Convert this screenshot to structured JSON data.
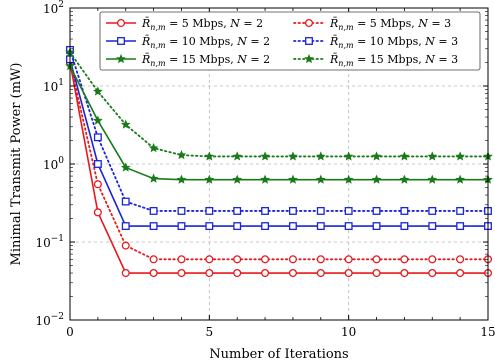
{
  "chart_data": {
    "type": "line",
    "title": "",
    "xlabel": "Number of Iterations",
    "ylabel": "Minimal Transmit Power (mW)",
    "xlim": [
      0,
      15
    ],
    "ylim": [
      0.01,
      100
    ],
    "yscale": "log",
    "grid": true,
    "legend_position": "top",
    "xticks": [
      0,
      5,
      10,
      15
    ],
    "xtick_labels": [
      "0",
      "5",
      "10",
      "15"
    ],
    "yticks": [
      0.01,
      0.1,
      1,
      10,
      100
    ],
    "ytick_labels": [
      {
        "base": "10",
        "exp": "−2"
      },
      {
        "base": "10",
        "exp": "−1"
      },
      {
        "base": "10",
        "exp": "0"
      },
      {
        "base": "10",
        "exp": "1"
      },
      {
        "base": "10",
        "exp": "2"
      }
    ],
    "x": [
      0,
      1,
      2,
      3,
      4,
      5,
      6,
      7,
      8,
      9,
      10,
      11,
      12,
      13,
      14,
      15
    ],
    "series": [
      {
        "name": "R̄n,m = 5 Mbps,  N = 2",
        "rate": "5",
        "n": "2",
        "color": "#e8191e",
        "dash": "solid",
        "marker": "circle",
        "values": [
          20,
          0.24,
          0.04,
          0.04,
          0.04,
          0.04,
          0.04,
          0.04,
          0.04,
          0.04,
          0.04,
          0.04,
          0.04,
          0.04,
          0.04,
          0.04
        ]
      },
      {
        "name": "R̄n,m = 5 Mbps,  N = 3",
        "rate": "5",
        "n": "3",
        "color": "#e8191e",
        "dash": "dotted",
        "marker": "circle",
        "values": [
          20,
          0.55,
          0.09,
          0.06,
          0.06,
          0.06,
          0.06,
          0.06,
          0.06,
          0.06,
          0.06,
          0.06,
          0.06,
          0.06,
          0.06,
          0.06
        ]
      },
      {
        "name": "R̄n,m = 10 Mbps,  N = 2",
        "rate": "10",
        "n": "2",
        "color": "#1a25d6",
        "dash": "solid",
        "marker": "square",
        "values": [
          22,
          1.0,
          0.16,
          0.16,
          0.16,
          0.16,
          0.16,
          0.16,
          0.16,
          0.16,
          0.16,
          0.16,
          0.16,
          0.16,
          0.16,
          0.16
        ]
      },
      {
        "name": "R̄n,m = 10 Mbps,  N = 3",
        "rate": "10",
        "n": "3",
        "color": "#1a25d6",
        "dash": "dotted",
        "marker": "square",
        "values": [
          29,
          2.2,
          0.33,
          0.25,
          0.25,
          0.25,
          0.25,
          0.25,
          0.25,
          0.25,
          0.25,
          0.25,
          0.25,
          0.25,
          0.25,
          0.25
        ]
      },
      {
        "name": "R̄n,m = 15 Mbps,  N = 2",
        "rate": "15",
        "n": "2",
        "color": "#1a7a1a",
        "dash": "solid",
        "marker": "star",
        "values": [
          18,
          3.6,
          0.9,
          0.65,
          0.63,
          0.63,
          0.63,
          0.63,
          0.63,
          0.63,
          0.63,
          0.63,
          0.63,
          0.63,
          0.63,
          0.63
        ]
      },
      {
        "name": "R̄n,m = 15 Mbps,  N = 3",
        "rate": "15",
        "n": "3",
        "color": "#1a7a1a",
        "dash": "dotted",
        "marker": "star",
        "values": [
          27,
          8.5,
          3.2,
          1.6,
          1.3,
          1.25,
          1.25,
          1.25,
          1.25,
          1.25,
          1.25,
          1.25,
          1.25,
          1.25,
          1.25,
          1.25
        ]
      }
    ],
    "legend_order": [
      0,
      1,
      2,
      3,
      4,
      5
    ],
    "legend_text": {
      "rate_unit": "Mbps",
      "n_label": "N",
      "equals": "="
    }
  }
}
